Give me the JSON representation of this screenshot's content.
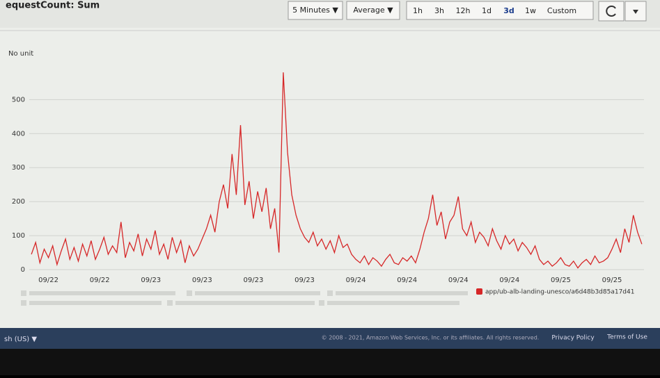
{
  "header": {
    "title": "equestCount: Sum",
    "period": "5 Minutes ▼",
    "statistic": "Average ▼",
    "ranges": [
      "1h",
      "3h",
      "12h",
      "1d",
      "3d",
      "1w",
      "Custom"
    ]
  },
  "chart_data": {
    "type": "line",
    "y_label": "No unit",
    "categories": [
      null,
      null,
      null,
      null,
      "09/22",
      null,
      null,
      null,
      null,
      null,
      null,
      null,
      null,
      null,
      null,
      null,
      "09/22",
      null,
      null,
      null,
      null,
      null,
      null,
      null,
      null,
      null,
      null,
      null,
      "09/23",
      null,
      null,
      null,
      null,
      null,
      null,
      null,
      null,
      null,
      null,
      null,
      "09/23",
      null,
      null,
      null,
      null,
      null,
      null,
      null,
      null,
      null,
      null,
      null,
      "09/23",
      null,
      null,
      null,
      null,
      null,
      null,
      null,
      null,
      null,
      null,
      null,
      "09/23",
      null,
      null,
      null,
      null,
      null,
      null,
      null,
      null,
      null,
      null,
      null,
      "09/24",
      null,
      null,
      null,
      null,
      null,
      null,
      null,
      null,
      null,
      null,
      null,
      "09/24",
      null,
      null,
      null,
      null,
      null,
      null,
      null,
      null,
      null,
      null,
      null,
      "09/24",
      null,
      null,
      null,
      null,
      null,
      null,
      null,
      null,
      null,
      null,
      null,
      "09/24",
      null,
      null,
      null,
      null,
      null,
      null,
      null,
      null,
      null,
      null,
      null,
      "09/25",
      null,
      null,
      null,
      null,
      null,
      null,
      null,
      null,
      null,
      null,
      null,
      "09/25",
      null,
      null,
      null,
      null,
      null,
      null,
      null
    ],
    "series": [
      {
        "name": "app/ub-alb-landing-unesco/a6d48b3d85a17d41",
        "color": "#d62728",
        "values": [
          45,
          80,
          20,
          60,
          35,
          70,
          15,
          55,
          90,
          30,
          65,
          25,
          75,
          40,
          85,
          30,
          60,
          95,
          45,
          70,
          50,
          140,
          35,
          80,
          55,
          105,
          40,
          90,
          60,
          115,
          45,
          75,
          30,
          95,
          50,
          85,
          20,
          70,
          40,
          60,
          90,
          120,
          160,
          110,
          200,
          250,
          180,
          340,
          220,
          425,
          190,
          260,
          150,
          230,
          170,
          240,
          120,
          180,
          50,
          580,
          345,
          220,
          160,
          120,
          95,
          80,
          110,
          70,
          90,
          60,
          85,
          50,
          100,
          65,
          75,
          45,
          30,
          20,
          40,
          15,
          35,
          25,
          10,
          30,
          45,
          20,
          15,
          35,
          25,
          40,
          20,
          60,
          110,
          150,
          220,
          130,
          170,
          90,
          140,
          160,
          215,
          120,
          100,
          140,
          80,
          110,
          95,
          70,
          120,
          85,
          60,
          100,
          75,
          90,
          55,
          80,
          65,
          45,
          70,
          30,
          15,
          25,
          10,
          20,
          35,
          15,
          10,
          25,
          5,
          20,
          30,
          15,
          40,
          20,
          25,
          35,
          60,
          90,
          50,
          120,
          80,
          160,
          110,
          75
        ]
      }
    ],
    "ylim": [
      0,
      650
    ],
    "yticks": [
      0,
      100,
      200,
      300,
      400,
      500
    ],
    "grid": true
  },
  "footer": {
    "language": "sh (US) ▼",
    "copyright": "© 2008 - 2021, Amazon Web Services, Inc. or its affiliates. All rights reserved.",
    "privacy": "Privacy Policy",
    "terms": "Terms of Use"
  }
}
